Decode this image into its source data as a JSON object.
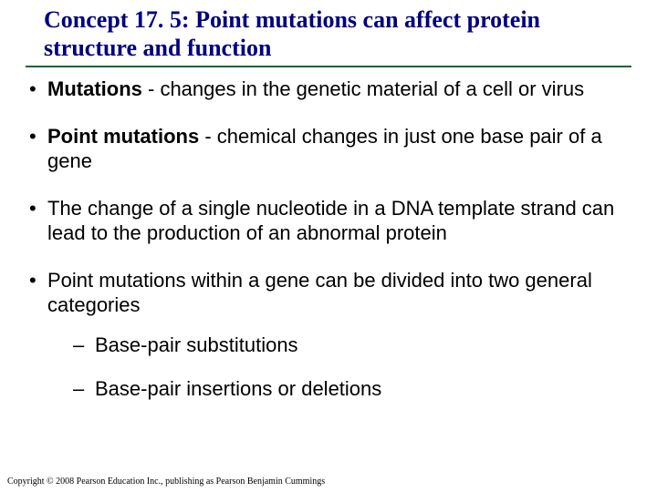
{
  "title": "Concept 17. 5: Point mutations can affect protein structure and function",
  "bullets": {
    "b1_term": "Mutations",
    "b1_rest": " - changes in the genetic material of a cell or virus",
    "b2_term": "Point mutations",
    "b2_rest": " - chemical changes in just one base pair of a gene",
    "b3": "The change of a single nucleotide in a DNA template strand can lead to the production of an abnormal protein",
    "b4": "Point mutations within a gene can be divided into two general categories",
    "sub1": "Base-pair substitutions",
    "sub2": "Base-pair insertions or deletions"
  },
  "copyright": "Copyright © 2008 Pearson Education Inc., publishing as Pearson Benjamin Cummings",
  "colors": {
    "title_color": "#000080",
    "underline_color": "#006633",
    "text_color": "#000000",
    "background": "#ffffff"
  },
  "fonts": {
    "title_family": "Times New Roman",
    "title_size_pt": 20,
    "body_family": "Arial",
    "body_size_pt": 17,
    "copyright_size_pt": 8
  }
}
